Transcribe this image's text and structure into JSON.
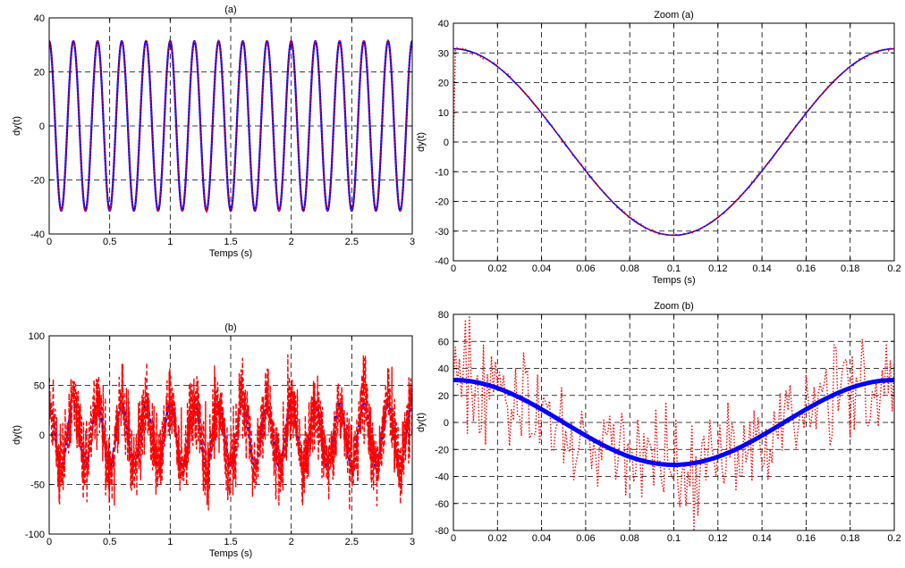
{
  "figure": {
    "description": "",
    "colors": {
      "reference": "#0000ff",
      "estimate": "#ff0000",
      "grid": "#000000",
      "background": "#ffffff"
    }
  },
  "chart_data": [
    {
      "id": "a",
      "type": "line",
      "title": "(a)",
      "xlabel": "Temps (s)",
      "ylabel": "dy(t)",
      "xlim": [
        0,
        3
      ],
      "ylim": [
        -40,
        40
      ],
      "xticks": [
        0,
        0.5,
        1,
        1.5,
        2,
        2.5,
        3
      ],
      "xtick_labels": [
        "0",
        "0.5",
        "1",
        "1.5",
        "2",
        "2.5",
        "3"
      ],
      "yticks": [
        -40,
        -20,
        0,
        20,
        40
      ],
      "ytick_labels": [
        "-40",
        "-20",
        "0",
        "20",
        "40"
      ],
      "grid": true,
      "series": [
        {
          "role": "reference",
          "style": "solid",
          "color": "#0000ff",
          "amplitude": 31.4,
          "frequency_hz": 5,
          "phase": "cosine",
          "noise_std": 0
        },
        {
          "role": "estimate",
          "style": "dotted",
          "color": "#ff0000",
          "amplitude": 31.4,
          "frequency_hz": 5,
          "phase": "cosine",
          "noise_std": 0.3
        }
      ]
    },
    {
      "id": "zoom_a",
      "type": "line",
      "title": "Zoom (a)",
      "xlabel": "Temps (s)",
      "ylabel": "dy(t)",
      "xlim": [
        0,
        0.2
      ],
      "ylim": [
        -40,
        40
      ],
      "xticks": [
        0,
        0.02,
        0.04,
        0.06,
        0.08,
        0.1,
        0.12,
        0.14,
        0.16,
        0.18,
        0.2
      ],
      "xtick_labels": [
        "0",
        "0.02",
        "0.04",
        "0.06",
        "0.08",
        "0.1",
        "0.12",
        "0.14",
        "0.16",
        "0.18",
        "0.2"
      ],
      "yticks": [
        -40,
        -30,
        -20,
        -10,
        0,
        10,
        20,
        30,
        40
      ],
      "ytick_labels": [
        "-40",
        "-30",
        "-20",
        "-10",
        "0",
        "10",
        "20",
        "30",
        "40"
      ],
      "grid": true,
      "series": [
        {
          "role": "reference",
          "style": "solid",
          "color": "#0000ff",
          "amplitude": 31.4,
          "frequency_hz": 5,
          "phase": "cosine",
          "noise_std": 0
        },
        {
          "role": "estimate",
          "style": "dotted",
          "color": "#ff0000",
          "amplitude": 31.4,
          "frequency_hz": 5,
          "phase": "cosine",
          "noise_std": 0.3,
          "start_value": 0
        }
      ]
    },
    {
      "id": "b",
      "type": "line",
      "title": "(b)",
      "xlabel": "Temps (s)",
      "ylabel": "dy(t)",
      "xlim": [
        0,
        3
      ],
      "ylim": [
        -100,
        100
      ],
      "xticks": [
        0,
        0.5,
        1,
        1.5,
        2,
        2.5,
        3
      ],
      "xtick_labels": [
        "0",
        "0.5",
        "1",
        "1.5",
        "2",
        "2.5",
        "3"
      ],
      "yticks": [
        -100,
        -50,
        0,
        50,
        100
      ],
      "ytick_labels": [
        "-100",
        "-50",
        "0",
        "50",
        "100"
      ],
      "grid": true,
      "series": [
        {
          "role": "reference",
          "style": "dashed",
          "color": "#0000ff",
          "amplitude": 31.4,
          "frequency_hz": 5,
          "phase": "cosine",
          "noise_std": 0
        },
        {
          "role": "estimate",
          "style": "dashed",
          "color": "#ff0000",
          "amplitude": 31.4,
          "frequency_hz": 5,
          "phase": "cosine",
          "noise_std": 20
        }
      ]
    },
    {
      "id": "zoom_b",
      "type": "line",
      "title": "Zoom (b)",
      "xlabel": "",
      "ylabel": "dy(t)",
      "xlim": [
        0,
        0.2
      ],
      "ylim": [
        -80,
        80
      ],
      "xticks": [
        0,
        0.02,
        0.04,
        0.06,
        0.08,
        0.1,
        0.12,
        0.14,
        0.16,
        0.18,
        0.2
      ],
      "xtick_labels": [
        "0",
        "0.02",
        "0.04",
        "0.06",
        "0.08",
        "0.1",
        "0.12",
        "0.14",
        "0.16",
        "0.18",
        "0.2"
      ],
      "yticks": [
        -80,
        -60,
        -40,
        -20,
        0,
        20,
        40,
        60,
        80
      ],
      "ytick_labels": [
        "-80",
        "-60",
        "-40",
        "-20",
        "0",
        "20",
        "40",
        "60",
        "80"
      ],
      "grid": true,
      "series": [
        {
          "role": "reference",
          "style": "thick",
          "color": "#0000ff",
          "amplitude": 31.4,
          "frequency_hz": 5,
          "phase": "cosine",
          "noise_std": 0
        },
        {
          "role": "estimate",
          "style": "dotted",
          "color": "#ff0000",
          "amplitude": 31.4,
          "frequency_hz": 5,
          "phase": "cosine",
          "noise_std": 20
        }
      ]
    }
  ]
}
